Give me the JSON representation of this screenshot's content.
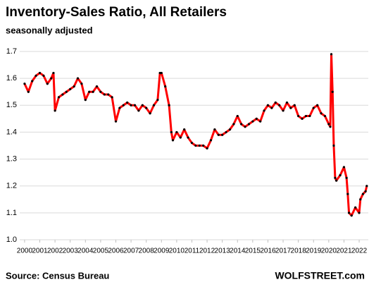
{
  "chart_data": {
    "type": "line",
    "title": "Inventory-Sales Ratio, All Retailers",
    "subtitle": "seasonally adjusted",
    "source": "Source: Census Bureau",
    "brand": "WOLFSTREET.com",
    "x": [
      2000,
      2000.25,
      2000.5,
      2000.75,
      2001,
      2001.25,
      2001.5,
      2001.75,
      2001.9,
      2002,
      2002.25,
      2002.5,
      2002.75,
      2003,
      2003.25,
      2003.5,
      2003.75,
      2004,
      2004.25,
      2004.5,
      2004.75,
      2005,
      2005.25,
      2005.5,
      2005.75,
      2006,
      2006.25,
      2006.5,
      2006.75,
      2007,
      2007.25,
      2007.5,
      2007.75,
      2008,
      2008.25,
      2008.5,
      2008.75,
      2008.9,
      2009,
      2009.25,
      2009.5,
      2009.65,
      2009.75,
      2010,
      2010.25,
      2010.5,
      2010.75,
      2011,
      2011.25,
      2011.5,
      2011.75,
      2012,
      2012.25,
      2012.5,
      2012.75,
      2013,
      2013.25,
      2013.5,
      2013.75,
      2014,
      2014.25,
      2014.5,
      2014.75,
      2015,
      2015.25,
      2015.5,
      2015.75,
      2016,
      2016.25,
      2016.5,
      2016.75,
      2017,
      2017.25,
      2017.5,
      2017.75,
      2018,
      2018.25,
      2018.5,
      2018.75,
      2019,
      2019.25,
      2019.5,
      2019.75,
      2020,
      2020.1,
      2020.17,
      2020.25,
      2020.33,
      2020.42,
      2020.5,
      2020.75,
      2021,
      2021.17,
      2021.25,
      2021.33,
      2021.5,
      2021.75,
      2022,
      2022.08,
      2022.25,
      2022.42,
      2022.5
    ],
    "series": [
      {
        "name": "Inventory-Sales Ratio",
        "color": "#ff0000",
        "values": [
          1.58,
          1.55,
          1.59,
          1.61,
          1.62,
          1.61,
          1.58,
          1.6,
          1.62,
          1.48,
          1.53,
          1.54,
          1.55,
          1.56,
          1.57,
          1.6,
          1.58,
          1.52,
          1.55,
          1.55,
          1.57,
          1.55,
          1.54,
          1.54,
          1.53,
          1.44,
          1.49,
          1.5,
          1.51,
          1.5,
          1.5,
          1.48,
          1.5,
          1.49,
          1.47,
          1.5,
          1.52,
          1.62,
          1.62,
          1.57,
          1.5,
          1.4,
          1.37,
          1.4,
          1.38,
          1.41,
          1.38,
          1.36,
          1.35,
          1.35,
          1.35,
          1.34,
          1.37,
          1.41,
          1.39,
          1.39,
          1.4,
          1.41,
          1.43,
          1.46,
          1.43,
          1.42,
          1.43,
          1.44,
          1.45,
          1.44,
          1.48,
          1.5,
          1.49,
          1.51,
          1.5,
          1.48,
          1.51,
          1.49,
          1.5,
          1.46,
          1.45,
          1.46,
          1.46,
          1.49,
          1.5,
          1.47,
          1.46,
          1.43,
          1.42,
          1.69,
          1.55,
          1.35,
          1.23,
          1.22,
          1.24,
          1.27,
          1.23,
          1.17,
          1.1,
          1.09,
          1.12,
          1.1,
          1.15,
          1.17,
          1.18,
          1.2
        ]
      }
    ],
    "xlim": [
      1999.68,
      2022.6
    ],
    "xticks": [
      2000,
      2001,
      2002,
      2003,
      2004,
      2005,
      2006,
      2007,
      2008,
      2009,
      2010,
      2011,
      2012,
      2013,
      2014,
      2015,
      2016,
      2017,
      2018,
      2019,
      2020,
      2021,
      2022
    ],
    "ylim": [
      1.0,
      1.7
    ],
    "yticks": [
      {
        "value": 1.0,
        "label": "1.0"
      },
      1.1,
      1.2,
      1.3,
      1.4,
      1.5,
      1.6,
      1.7
    ],
    "grid": true
  }
}
